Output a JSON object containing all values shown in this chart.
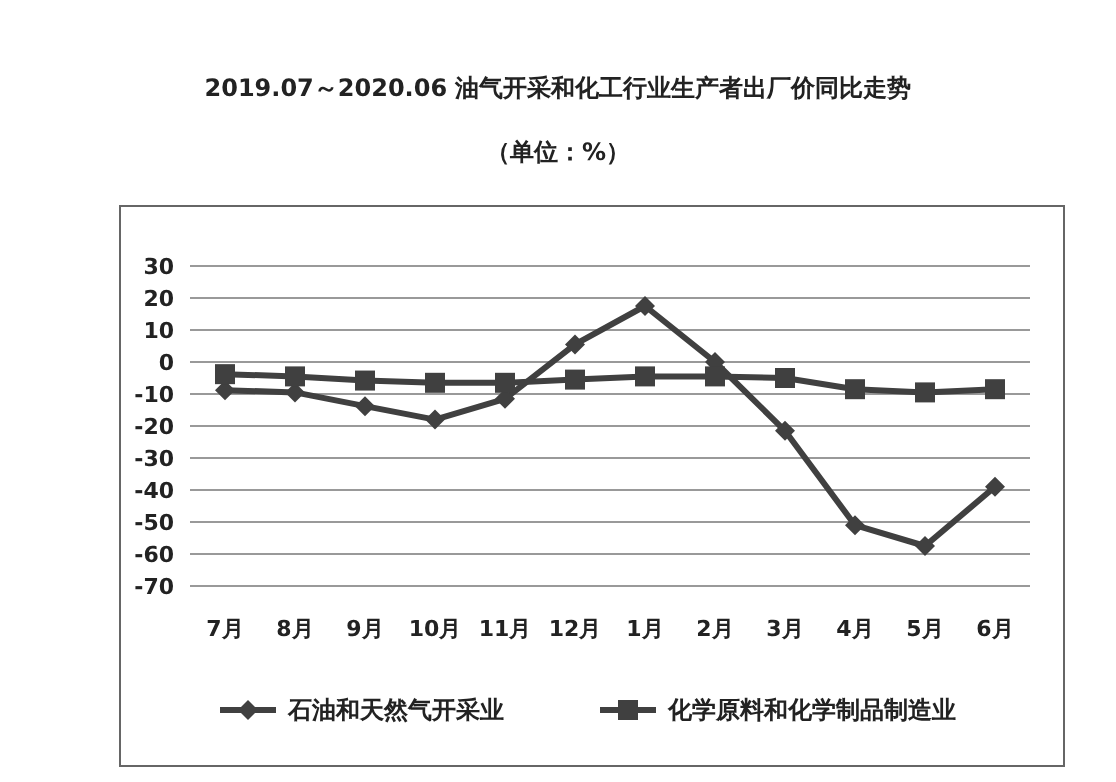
{
  "chart_data": {
    "type": "line",
    "title": "2019.07～2020.06 油气开采和化工行业生产者出厂价同比走势",
    "subtitle": "（单位：%）",
    "categories": [
      "7月",
      "8月",
      "9月",
      "10月",
      "11月",
      "12月",
      "1月",
      "2月",
      "3月",
      "4月",
      "5月",
      "6月"
    ],
    "series": [
      {
        "name": "石油和天然气开采业",
        "color": "#404040",
        "marker": "diamond",
        "values": [
          -8.8,
          -9.5,
          -13.8,
          -18,
          -11.5,
          5.5,
          17.5,
          0,
          -21.5,
          -51,
          -57.5,
          -39
        ]
      },
      {
        "name": "化学原料和化学制品制造业",
        "color": "#404040",
        "marker": "square",
        "values": [
          -3.8,
          -4.5,
          -5.8,
          -6.5,
          -6.5,
          -5.5,
          -4.5,
          -4.5,
          -5,
          -8.5,
          -9.5,
          -8.5
        ]
      }
    ],
    "ylim": [
      -70,
      30
    ],
    "yticks": [
      -70,
      -60,
      -50,
      -40,
      -30,
      -20,
      -10,
      0,
      10,
      20,
      30
    ],
    "grid": "y",
    "legend": "bottom",
    "line_style": "solid"
  }
}
